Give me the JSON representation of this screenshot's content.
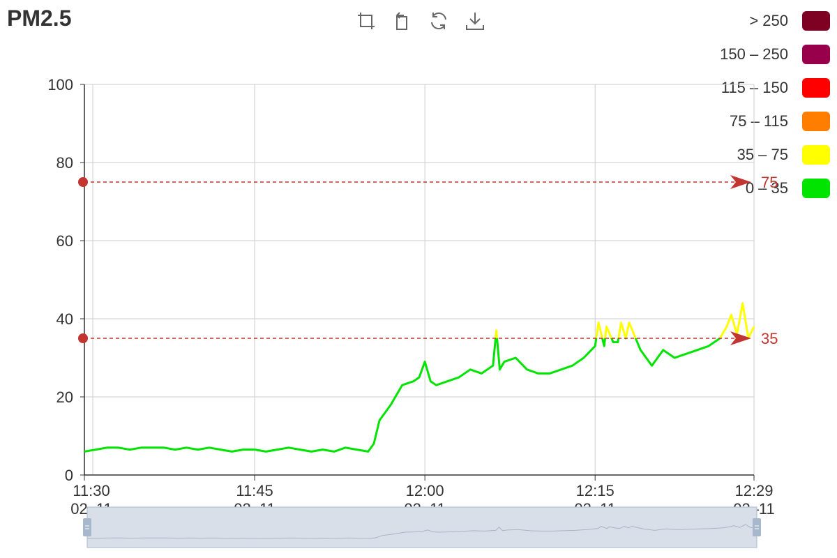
{
  "title": "PM2.5",
  "toolbox": [
    {
      "name": "zoom-icon",
      "label": "Zoom"
    },
    {
      "name": "zoom-reset-icon",
      "label": "Zoom reset"
    },
    {
      "name": "restore-icon",
      "label": "Restore"
    },
    {
      "name": "download-icon",
      "label": "Save as image"
    }
  ],
  "legend": [
    {
      "label": "> 250",
      "color": "#7e0023"
    },
    {
      "label": "150 – 250",
      "color": "#99004c"
    },
    {
      "label": "115 – 150",
      "color": "#ff0000"
    },
    {
      "label": "75 – 115",
      "color": "#ff7e00"
    },
    {
      "label": "35 – 75",
      "color": "#ffff00"
    },
    {
      "label": "0 – 35",
      "color": "#00e400"
    }
  ],
  "chart_data": {
    "type": "line",
    "title": "PM2.5",
    "ylim": [
      0,
      100
    ],
    "yticks": [
      0,
      20,
      40,
      60,
      80,
      100
    ],
    "xticks": [
      {
        "t": 0,
        "time": "11:30",
        "date": "02–11"
      },
      {
        "t": 15,
        "time": "11:45",
        "date": "02–11"
      },
      {
        "t": 30,
        "time": "12:00",
        "date": "02–11"
      },
      {
        "t": 45,
        "time": "12:15",
        "date": "02–11"
      },
      {
        "t": 59,
        "time": "12:29",
        "date": "02–11"
      }
    ],
    "grid": true,
    "series": [
      {
        "x_minutes": [
          0,
          1,
          2,
          3,
          4,
          5,
          6,
          7,
          8,
          9,
          10,
          11,
          12,
          13,
          14,
          15,
          16,
          17,
          18,
          19,
          20,
          21,
          22,
          23,
          24,
          25,
          25.5,
          26,
          27,
          28,
          29,
          29.5,
          30,
          30.5,
          31,
          32,
          33,
          34,
          35,
          36,
          36.3,
          36.6,
          37,
          38,
          39,
          40,
          41,
          42,
          43,
          44,
          45,
          45.3,
          45.8,
          46,
          46.6,
          47,
          47.3,
          47.7,
          48,
          49,
          50,
          51,
          52,
          53,
          54,
          55,
          56,
          56.6,
          57,
          57.5,
          58,
          58.5,
          59
        ],
        "values": [
          6,
          6.5,
          7,
          7,
          6.5,
          7,
          7,
          7,
          6.5,
          7,
          6.5,
          7,
          6.5,
          6,
          6.5,
          6.5,
          6,
          6.5,
          7,
          6.5,
          6,
          6.5,
          6,
          7,
          6.5,
          6,
          8,
          14,
          18,
          23,
          24,
          25,
          29,
          24,
          23,
          24,
          25,
          27,
          26,
          28,
          37,
          27,
          29,
          30,
          27,
          26,
          26,
          27,
          28,
          30,
          33,
          39,
          33,
          38,
          34,
          34,
          39,
          35,
          39,
          32,
          28,
          32,
          30,
          31,
          32,
          33,
          35,
          38,
          41,
          36,
          44,
          35,
          38
        ]
      }
    ],
    "visual_map": [
      {
        "gt": 250,
        "color": "#7e0023"
      },
      {
        "gt": 150,
        "lte": 250,
        "color": "#99004c"
      },
      {
        "gt": 115,
        "lte": 150,
        "color": "#ff0000"
      },
      {
        "gt": 75,
        "lte": 115,
        "color": "#ff7e00"
      },
      {
        "gt": 35,
        "lte": 75,
        "color": "#ffff00"
      },
      {
        "gt": 0,
        "lte": 35,
        "color": "#00e400"
      }
    ],
    "mark_lines": [
      {
        "value": 75,
        "label": "75"
      },
      {
        "value": 35,
        "label": "35"
      }
    ],
    "mark_line_color": "#c23531",
    "grid_color": "#cccccc",
    "axis_color": "#333333",
    "data_zoom": {
      "start": 0,
      "end": 100
    }
  }
}
